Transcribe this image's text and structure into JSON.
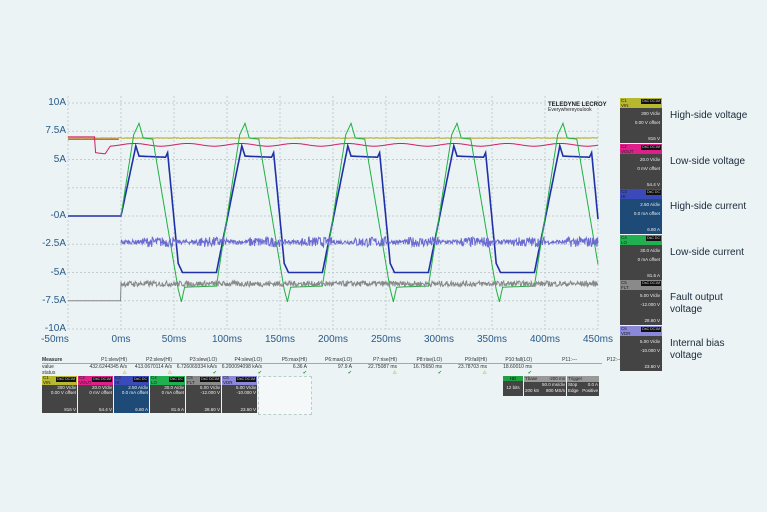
{
  "chart_data": {
    "type": "line",
    "xlabel": "",
    "ylabel": "",
    "x_ticks": [
      "-50ms",
      "0ms",
      "50ms",
      "100ms",
      "150ms",
      "200ms",
      "250ms",
      "300ms",
      "350ms",
      "400ms",
      "450ms"
    ],
    "y_ticks": [
      "10A",
      "7.5A",
      "5A",
      "",
      "-0A",
      "-2.5A",
      "-5A",
      "-7.5A",
      "-10A"
    ],
    "xlim": [
      -50,
      450
    ],
    "ylim": [
      -10,
      10
    ],
    "grid": true,
    "period_ms": 100,
    "series": [
      {
        "color": "#b5a820",
        "flat": 6.9
      },
      {
        "color": "#d02060",
        "pre": [
          [
            -50,
            7.0
          ],
          [
            -25,
            7.0
          ],
          [
            -24,
            5.6
          ],
          [
            -15,
            5.5
          ],
          [
            -10,
            6.2
          ]
        ],
        "level": 6.3
      },
      {
        "color": "#d03030",
        "pre": [
          [
            -50,
            6.8
          ],
          [
            -2,
            6.8
          ]
        ]
      },
      {
        "color": "#2030a8",
        "cycle": [
          [
            -10,
            -5
          ],
          [
            14,
            6.2
          ],
          [
            17,
            5.3
          ],
          [
            42,
            5.2
          ],
          [
            44,
            5.6
          ],
          [
            54,
            -4.2
          ],
          [
            58,
            -5
          ],
          [
            90,
            -5
          ]
        ]
      },
      {
        "color": "#20b040",
        "cycle": [
          [
            -10,
            -6.2
          ],
          [
            12,
            7.2
          ],
          [
            17,
            8.2
          ],
          [
            21,
            6.9
          ],
          [
            30,
            6.8
          ],
          [
            54,
            -6.5
          ],
          [
            57,
            -7.6
          ],
          [
            60,
            -6.3
          ],
          [
            90,
            -6.2
          ]
        ]
      },
      {
        "color": "#6a6ad0",
        "level": -2.3
      },
      {
        "color": "#888888",
        "pre_level": -7.5,
        "level": -6.0
      }
    ]
  },
  "logo": {
    "brand": "TELEDYNE LECROY",
    "tagline": "Everywhereyoulook"
  },
  "measure": {
    "labels": [
      "Measure",
      "value",
      "status"
    ],
    "cols": [
      {
        "h": "P1:slew(HI)",
        "v": "432.6244345 A/s",
        "s": "warn"
      },
      {
        "h": "P2:slew(HI)",
        "v": "413.0670114 A/s",
        "s": "warn"
      },
      {
        "h": "P3:slew(LO)",
        "v": "6.726069334 kA/s",
        "s": "ok"
      },
      {
        "h": "P4:slew(LO)",
        "v": "6.200094098 kA/s",
        "s": "ok"
      },
      {
        "h": "P5:max(HI)",
        "v": "6.36 A",
        "s": "ok"
      },
      {
        "h": "P6:max(LO)",
        "v": "97.9 A",
        "s": "ok"
      },
      {
        "h": "P7:rise(HI)",
        "v": "22.75087 ms",
        "s": "warn"
      },
      {
        "h": "P8:rise(LO)",
        "v": "16.75650 ms",
        "s": "ok"
      },
      {
        "h": "P9:fall(HI)",
        "v": "23.78703 ms",
        "s": "warn"
      },
      {
        "h": "P10:fall(LO)",
        "v": "18.60010 ms",
        "s": "ok"
      },
      {
        "h": "P11:---",
        "v": "",
        "s": ""
      },
      {
        "h": "P12:---",
        "v": "",
        "s": ""
      }
    ]
  },
  "channels": [
    {
      "id": "C1",
      "name": "VIN",
      "color": "#b8b830",
      "badge": "DsC DC1M",
      "div": "300 V/div",
      "off": "0.00 V offset",
      "val": "816 V",
      "label": "High-side voltage"
    },
    {
      "id": "C2",
      "name": "VOUT",
      "color": "#e0208a",
      "badge": "DsC DC1M",
      "div": "20.0 V/div",
      "off": "0 mV offset",
      "val": "54.4 V",
      "label": "Low-side voltage"
    },
    {
      "id": "C3",
      "name": "HI",
      "color": "#3a4ab8",
      "badge": "DsC DC",
      "div": "2.50 A/div",
      "off": "0.0 mA offset",
      "val": "6.80 A",
      "label": "High-side current"
    },
    {
      "id": "C4",
      "name": "LO",
      "color": "#20b050",
      "badge": "DsC DC",
      "div": "30.0 A/div",
      "off": "0 mA offset",
      "val": "81.6 A",
      "label": "Low-side current"
    },
    {
      "id": "C5",
      "name": "FLT",
      "color": "#8a8a8a",
      "badge": "DsC DC1M",
      "div": "5.00 V/div",
      "off": "-12.000 V",
      "val": "28.60 V",
      "label": "Fault output voltage"
    },
    {
      "id": "C6",
      "name": "VDR",
      "color": "#8a88d8",
      "badge": "DsC DC1M",
      "div": "5.00 V/div",
      "off": "-10.000 V",
      "val": "23.60 V",
      "label": "Internal bias voltage"
    }
  ],
  "timebase": {
    "mode": "HD",
    "bits": "12 bits",
    "tbase": "Tbase",
    "tdelay": "-200 ms",
    "tdiv": "50.0 ms/div",
    "samples": "200 kS",
    "rate": "800 MS/s",
    "trigger": "Trigger",
    "state": "Stop",
    "level": "0.0 A",
    "type": "Edge",
    "slope": "Positive"
  }
}
